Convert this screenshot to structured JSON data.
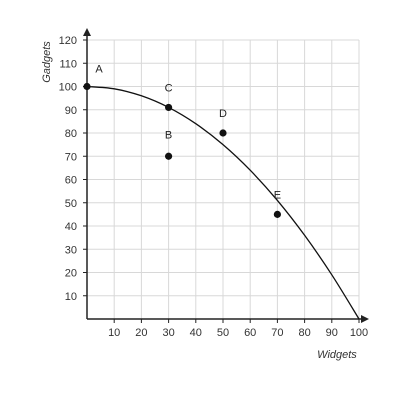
{
  "chart_data": {
    "type": "scatter",
    "title": "",
    "xlabel": "Widgets",
    "ylabel": "Gadgets",
    "xlim": [
      0,
      100
    ],
    "ylim": [
      0,
      120
    ],
    "x_ticks": [
      10,
      20,
      30,
      40,
      50,
      60,
      70,
      80,
      90,
      100
    ],
    "y_ticks": [
      10,
      20,
      30,
      40,
      50,
      60,
      70,
      80,
      90,
      100,
      110,
      120
    ],
    "grid": true,
    "points": [
      {
        "label": "A",
        "x": 0,
        "y": 100
      },
      {
        "label": "B",
        "x": 30,
        "y": 70
      },
      {
        "label": "C",
        "x": 30,
        "y": 91
      },
      {
        "label": "D",
        "x": 50,
        "y": 80
      },
      {
        "label": "E",
        "x": 70,
        "y": 45
      }
    ],
    "curve": {
      "x": [
        0,
        10,
        20,
        30,
        40,
        50,
        60,
        70,
        80,
        90,
        100
      ],
      "y": [
        100,
        99,
        96,
        91,
        84,
        75,
        64,
        51,
        36,
        19,
        0
      ]
    },
    "colors": {
      "grid": "#d8d8d8",
      "axis": "#222222",
      "marker": "#111111",
      "curve": "#111111"
    }
  }
}
